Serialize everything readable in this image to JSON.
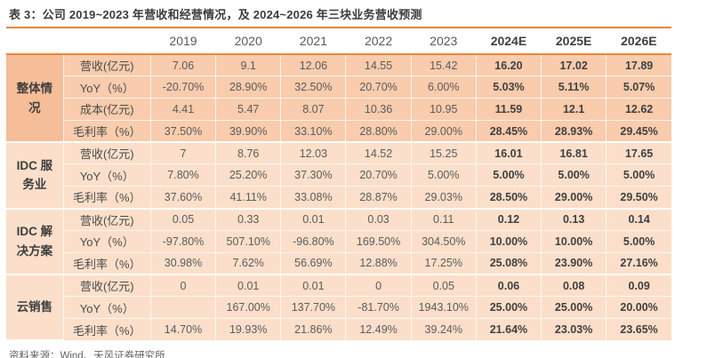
{
  "title": "表 3：公司 2019~2023 年营收和经营情况，及 2024~2026 年三块业务营收预测",
  "source_note": "资料来源：Wind、天风证券研究所",
  "colors": {
    "accent_orange": "#ef8636",
    "section1_label_bg": "#f5bd98",
    "section1_data_bg": "#f8ccad",
    "light_section_bg": "#fbdfca",
    "header_text": "#58595b",
    "data_text": "#5b5b5b",
    "title_text": "#3c3c3c",
    "source_text": "#636363"
  },
  "table": {
    "years": [
      "2019",
      "2020",
      "2021",
      "2022",
      "2023",
      "2024E",
      "2025E",
      "2026E"
    ],
    "forecast_from": 5,
    "sections": [
      {
        "name": "整体情况",
        "rows": [
          {
            "label": "营收(亿元)",
            "values": [
              "7.06",
              "9.1",
              "12.06",
              "14.55",
              "15.42",
              "16.20",
              "17.02",
              "17.89"
            ]
          },
          {
            "label": "YoY（%）",
            "values": [
              "-20.70%",
              "28.90%",
              "32.50%",
              "20.70%",
              "6.00%",
              "5.03%",
              "5.11%",
              "5.07%"
            ]
          },
          {
            "label": "成本(亿元)",
            "values": [
              "4.41",
              "5.47",
              "8.07",
              "10.36",
              "10.95",
              "11.59",
              "12.1",
              "12.62"
            ]
          },
          {
            "label": "毛利率（%）",
            "values": [
              "37.50%",
              "39.90%",
              "33.10%",
              "28.80%",
              "29.00%",
              "28.45%",
              "28.93%",
              "29.45%"
            ]
          }
        ]
      },
      {
        "name": "IDC 服务业",
        "rows": [
          {
            "label": "营收(亿元)",
            "values": [
              "7",
              "8.76",
              "12.03",
              "14.52",
              "15.25",
              "16.01",
              "16.81",
              "17.65"
            ]
          },
          {
            "label": "YoY（%）",
            "values": [
              "7.80%",
              "25.20%",
              "37.30%",
              "20.70%",
              "5.00%",
              "5.00%",
              "5.00%",
              "5.00%"
            ]
          },
          {
            "label": "毛利率（%）",
            "values": [
              "37.60%",
              "41.11%",
              "33.08%",
              "28.87%",
              "29.03%",
              "28.50%",
              "29.00%",
              "29.50%"
            ]
          }
        ]
      },
      {
        "name": "IDC 解决方案",
        "rows": [
          {
            "label": "营收(亿元)",
            "values": [
              "0.05",
              "0.33",
              "0.01",
              "0.03",
              "0.11",
              "0.12",
              "0.13",
              "0.14"
            ]
          },
          {
            "label": "YoY（%）",
            "values": [
              "-97.80%",
              "507.10%",
              "-96.80%",
              "169.50%",
              "304.50%",
              "10.00%",
              "10.00%",
              "5.00%"
            ]
          },
          {
            "label": "毛利率（%）",
            "values": [
              "30.98%",
              "7.62%",
              "56.69%",
              "12.88%",
              "17.25%",
              "25.08%",
              "23.90%",
              "27.16%"
            ]
          }
        ]
      },
      {
        "name": "云销售",
        "rows": [
          {
            "label": "营收(亿元)",
            "values": [
              "0",
              "0.01",
              "0.01",
              "0",
              "0.05",
              "0.06",
              "0.08",
              "0.09"
            ]
          },
          {
            "label": "YoY（%）",
            "values": [
              "",
              "167.00%",
              "137.70%",
              "-81.70%",
              "1943.10%",
              "25.00%",
              "25.00%",
              "20.00%"
            ]
          },
          {
            "label": "毛利率（%）",
            "values": [
              "14.70%",
              "19.93%",
              "21.86%",
              "12.49%",
              "39.24%",
              "21.64%",
              "23.03%",
              "23.65%"
            ]
          }
        ]
      }
    ]
  }
}
